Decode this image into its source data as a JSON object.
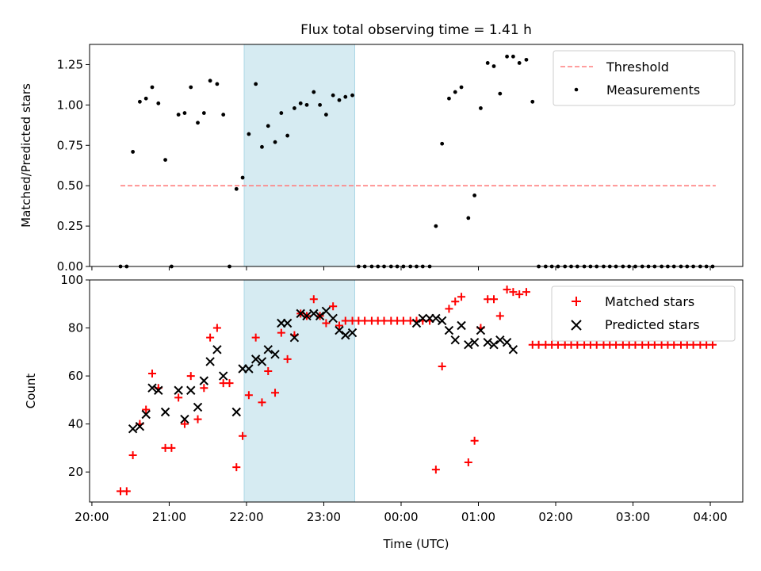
{
  "title": "Flux total observing time = 1.41 h",
  "colors": {
    "threshold": "#ff7f7f",
    "measurements": "#000000",
    "matched": "#ff0000",
    "predicted": "#000000",
    "shade": "#add8e6"
  },
  "chart_data": [
    {
      "type": "scatter",
      "ylabel": "Matched/Predicted stars",
      "ylim": [
        0,
        1.375
      ],
      "yticks": [
        "0.00",
        "0.25",
        "0.50",
        "0.75",
        "1.00",
        "1.25"
      ],
      "xlim": [
        -0.03,
        8.42
      ],
      "shaded_span": [
        1.97,
        3.4
      ],
      "legend": {
        "placement": "upper right",
        "entries": [
          "Threshold",
          "Measurements"
        ]
      },
      "threshold": {
        "name": "Threshold",
        "y": 0.5,
        "x": [
          0.37,
          8.07
        ]
      },
      "series": [
        {
          "name": "Measurements",
          "x": [
            0.37,
            0.45,
            0.53,
            0.62,
            0.7,
            0.78,
            0.86,
            0.95,
            1.03,
            1.12,
            1.2,
            1.28,
            1.37,
            1.45,
            1.53,
            1.62,
            1.7,
            1.78,
            1.87,
            1.95,
            2.03,
            2.12,
            2.2,
            2.28,
            2.37,
            2.45,
            2.53,
            2.62,
            2.7,
            2.78,
            2.87,
            2.95,
            3.03,
            3.12,
            3.2,
            3.28,
            3.37,
            3.45,
            3.53,
            3.62,
            3.7,
            3.78,
            3.87,
            3.95,
            4.03,
            4.12,
            4.2,
            4.28,
            4.37,
            4.45,
            4.53,
            4.62,
            4.7,
            4.78,
            4.87,
            4.95,
            5.03,
            5.12,
            5.2,
            5.28,
            5.37,
            5.45,
            5.53,
            5.62,
            5.7,
            5.78,
            5.87,
            5.95,
            6.03,
            6.12,
            6.2,
            6.28,
            6.37,
            6.45,
            6.53,
            6.62,
            6.7,
            6.78,
            6.87,
            6.95,
            7.03,
            7.12,
            7.2,
            7.28,
            7.37,
            7.45,
            7.53,
            7.62,
            7.7,
            7.78,
            7.87,
            7.95,
            8.03
          ],
          "y": [
            0,
            0,
            0.71,
            1.02,
            1.04,
            1.11,
            1.01,
            0.66,
            0,
            0.94,
            0.95,
            1.11,
            0.89,
            0.95,
            1.15,
            1.13,
            0.94,
            0,
            0.48,
            0.55,
            0.82,
            1.13,
            0.74,
            0.87,
            0.77,
            0.95,
            0.81,
            0.98,
            1.01,
            1.0,
            1.08,
            1.0,
            0.94,
            1.06,
            1.03,
            1.05,
            1.06,
            0,
            0,
            0,
            0,
            0,
            0,
            0,
            0,
            0,
            0,
            0,
            0,
            0.25,
            0.76,
            1.04,
            1.08,
            1.11,
            0.3,
            0.44,
            0.98,
            1.26,
            1.24,
            1.07,
            1.3,
            1.3,
            1.26,
            1.28,
            1.02,
            0,
            0,
            0,
            0,
            0,
            0,
            0,
            0,
            0,
            0,
            0,
            0,
            0,
            0,
            0,
            0,
            0,
            0,
            0,
            0,
            0,
            0,
            0,
            0,
            0,
            0,
            0,
            0
          ]
        }
      ]
    },
    {
      "type": "scatter",
      "ylabel": "Count",
      "xlabel": "Time (UTC)",
      "ylim": [
        7.5,
        100
      ],
      "yticks": [
        "20",
        "40",
        "60",
        "80",
        "100"
      ],
      "xlim": [
        -0.03,
        8.42
      ],
      "xticks": [
        "20:00",
        "21:00",
        "22:00",
        "23:00",
        "00:00",
        "01:00",
        "02:00",
        "03:00",
        "04:00"
      ],
      "shaded_span": [
        1.97,
        3.4
      ],
      "legend": {
        "placement": "upper right",
        "entries": [
          "Matched stars",
          "Predicted stars"
        ]
      },
      "series": [
        {
          "name": "Matched stars",
          "x": [
            0.37,
            0.45,
            0.53,
            0.62,
            0.7,
            0.78,
            0.86,
            0.95,
            1.03,
            1.12,
            1.2,
            1.28,
            1.37,
            1.45,
            1.53,
            1.62,
            1.7,
            1.78,
            1.87,
            1.95,
            2.03,
            2.12,
            2.2,
            2.28,
            2.37,
            2.45,
            2.53,
            2.62,
            2.7,
            2.78,
            2.87,
            2.95,
            3.03,
            3.12,
            3.2,
            3.28,
            3.37,
            3.45,
            3.53,
            3.62,
            3.7,
            3.78,
            3.87,
            3.95,
            4.03,
            4.12,
            4.2,
            4.28,
            4.37,
            4.45,
            4.53,
            4.62,
            4.7,
            4.78,
            4.87,
            4.95,
            5.03,
            5.12,
            5.2,
            5.28,
            5.37,
            5.45,
            5.53,
            5.62,
            5.7,
            5.78,
            5.87,
            5.95,
            6.03,
            6.12,
            6.2,
            6.28,
            6.37,
            6.45,
            6.53,
            6.62,
            6.7,
            6.78,
            6.87,
            6.95,
            7.03,
            7.12,
            7.2,
            7.28,
            7.37,
            7.45,
            7.53,
            7.62,
            7.7,
            7.78,
            7.87,
            7.95,
            8.03
          ],
          "y": [
            12,
            12,
            27,
            40,
            46,
            61,
            55,
            30,
            30,
            51,
            40,
            60,
            42,
            55,
            76,
            80,
            57,
            57,
            22,
            35,
            52,
            76,
            49,
            62,
            53,
            78,
            67,
            77,
            86,
            85,
            92,
            85,
            82,
            89,
            81,
            83,
            83,
            83,
            83,
            83,
            83,
            83,
            83,
            83,
            83,
            83,
            83,
            83,
            83,
            21,
            64,
            88,
            91,
            93,
            24,
            33,
            80,
            92,
            92,
            85,
            96,
            95,
            94,
            95,
            73,
            73,
            73,
            73,
            73,
            73,
            73,
            73,
            73,
            73,
            73,
            73,
            73,
            73,
            73,
            73,
            73,
            73,
            73,
            73,
            73,
            73,
            73,
            73,
            73,
            73,
            73,
            73,
            73
          ]
        },
        {
          "name": "Predicted stars",
          "x": [
            0.53,
            0.62,
            0.7,
            0.78,
            0.86,
            0.95,
            1.12,
            1.2,
            1.28,
            1.37,
            1.45,
            1.53,
            1.62,
            1.7,
            1.87,
            1.95,
            2.03,
            2.12,
            2.2,
            2.28,
            2.37,
            2.45,
            2.53,
            2.62,
            2.7,
            2.78,
            2.87,
            2.95,
            3.03,
            3.12,
            3.2,
            3.28,
            3.37,
            4.2,
            4.28,
            4.37,
            4.45,
            4.53,
            4.62,
            4.7,
            4.78,
            4.87,
            4.95,
            5.03,
            5.12,
            5.2,
            5.28,
            5.37,
            5.45
          ],
          "y": [
            38,
            39,
            44,
            55,
            54,
            45,
            54,
            42,
            54,
            47,
            58,
            66,
            71,
            60,
            45,
            63,
            63,
            67,
            66,
            71,
            69,
            82,
            82,
            76,
            86,
            85,
            86,
            85,
            87,
            84,
            79,
            77,
            78,
            82,
            84,
            84,
            84,
            83,
            79,
            75,
            81,
            73,
            74,
            79,
            74,
            73,
            75,
            74,
            71
          ]
        }
      ]
    }
  ]
}
